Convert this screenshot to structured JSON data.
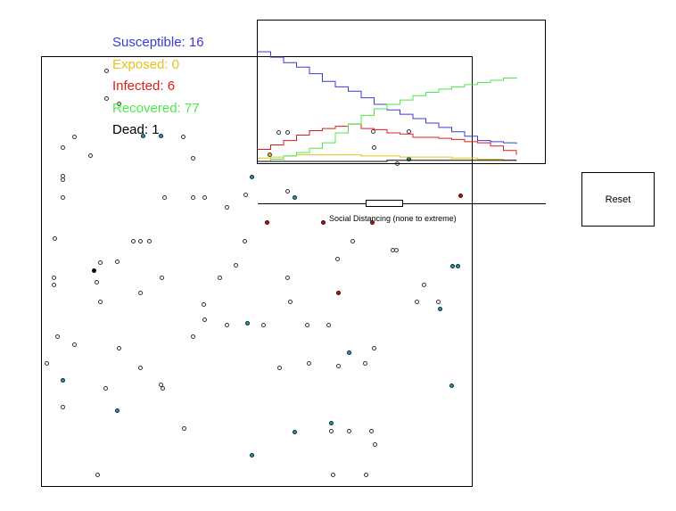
{
  "legend": {
    "susceptible": "Susceptible: 16",
    "exposed": "Exposed: 0",
    "infected": "Infected: 6",
    "recovered": "Recovered: 77",
    "dead": "Dead: 1"
  },
  "colors": {
    "susceptible": "#3b3bd6",
    "exposed": "#e6c21a",
    "infected": "#e01b1b",
    "recovered": "#4ce84c",
    "dead": "#000000",
    "recovered_dot": "#1aa3a3",
    "infected_dot": "#b01818"
  },
  "slider": {
    "label": "Social Distancing (none to extreme)",
    "value": 0.5
  },
  "reset_button": {
    "label": "Reset"
  },
  "chart_data": {
    "type": "line",
    "title": "",
    "xlabel": "",
    "ylabel": "",
    "ylim": [
      0,
      100
    ],
    "x_steps": 20,
    "series": [
      {
        "name": "Susceptible",
        "color": "#3b3bd6",
        "values": [
          100,
          95,
          90,
          86,
          80,
          73,
          68,
          64,
          58,
          52,
          47,
          43,
          39,
          35,
          31,
          27,
          23,
          19,
          18,
          17,
          16
        ]
      },
      {
        "name": "Exposed",
        "color": "#e6c21a",
        "values": [
          3,
          4,
          5,
          6,
          6,
          6,
          6,
          6,
          5,
          5,
          5,
          4,
          4,
          4,
          4,
          3,
          3,
          2,
          2,
          1,
          0
        ]
      },
      {
        "name": "Infected",
        "color": "#e01b1b",
        "values": [
          11,
          15,
          19,
          24,
          28,
          30,
          32,
          34,
          30,
          29,
          26,
          25,
          22,
          22,
          21,
          20,
          18,
          17,
          14,
          10,
          6
        ]
      },
      {
        "name": "Recovered",
        "color": "#4ce84c",
        "values": [
          0,
          2,
          5,
          8,
          12,
          17,
          26,
          34,
          42,
          48,
          52,
          56,
          60,
          63,
          66,
          68,
          70,
          72,
          74,
          76,
          77
        ]
      },
      {
        "name": "Dead",
        "color": "#000000",
        "values": [
          0,
          0,
          0,
          0,
          0,
          0,
          0,
          0,
          0,
          0,
          1,
          1,
          1,
          1,
          1,
          1,
          1,
          1,
          1,
          1,
          1
        ]
      }
    ]
  },
  "population": {
    "susceptible": [
      [
        119,
        79
      ],
      [
        119,
        110
      ],
      [
        83,
        153
      ],
      [
        70,
        165
      ],
      [
        101,
        174
      ],
      [
        205,
        153
      ],
      [
        216,
        177
      ],
      [
        70,
        197
      ],
      [
        70,
        201
      ],
      [
        70,
        221
      ],
      [
        184,
        221
      ],
      [
        216,
        221
      ],
      [
        229,
        221
      ],
      [
        275,
        218
      ],
      [
        254,
        232
      ],
      [
        322,
        214
      ],
      [
        61,
        267
      ],
      [
        149,
        270
      ],
      [
        157,
        270
      ],
      [
        167,
        270
      ],
      [
        274,
        270
      ],
      [
        395,
        270
      ],
      [
        112,
        294
      ],
      [
        131,
        293
      ],
      [
        264,
        297
      ],
      [
        378,
        290
      ],
      [
        440,
        280
      ],
      [
        444,
        280
      ],
      [
        60,
        311
      ],
      [
        60,
        319
      ],
      [
        108,
        316
      ],
      [
        181,
        311
      ],
      [
        246,
        311
      ],
      [
        157,
        328
      ],
      [
        112,
        338
      ],
      [
        228,
        341
      ],
      [
        322,
        311
      ],
      [
        475,
        319
      ],
      [
        467,
        338
      ],
      [
        491,
        338
      ],
      [
        325,
        338
      ],
      [
        229,
        358
      ],
      [
        254,
        364
      ],
      [
        295,
        364
      ],
      [
        344,
        364
      ],
      [
        368,
        364
      ],
      [
        216,
        377
      ],
      [
        64,
        377
      ],
      [
        83,
        386
      ],
      [
        133,
        390
      ],
      [
        419,
        390
      ],
      [
        52,
        407
      ],
      [
        157,
        412
      ],
      [
        313,
        412
      ],
      [
        346,
        407
      ],
      [
        379,
        410
      ],
      [
        409,
        407
      ],
      [
        118,
        435
      ],
      [
        180,
        431
      ],
      [
        182,
        435
      ],
      [
        70,
        456
      ],
      [
        206,
        480
      ],
      [
        371,
        483
      ],
      [
        391,
        483
      ],
      [
        416,
        483
      ],
      [
        420,
        498
      ],
      [
        109,
        532
      ],
      [
        373,
        532
      ],
      [
        410,
        532
      ],
      [
        312,
        148
      ],
      [
        322,
        148
      ],
      [
        419,
        165
      ],
      [
        445,
        183
      ],
      [
        418,
        147
      ],
      [
        458,
        147
      ],
      [
        133,
        116
      ]
    ]
  }
}
